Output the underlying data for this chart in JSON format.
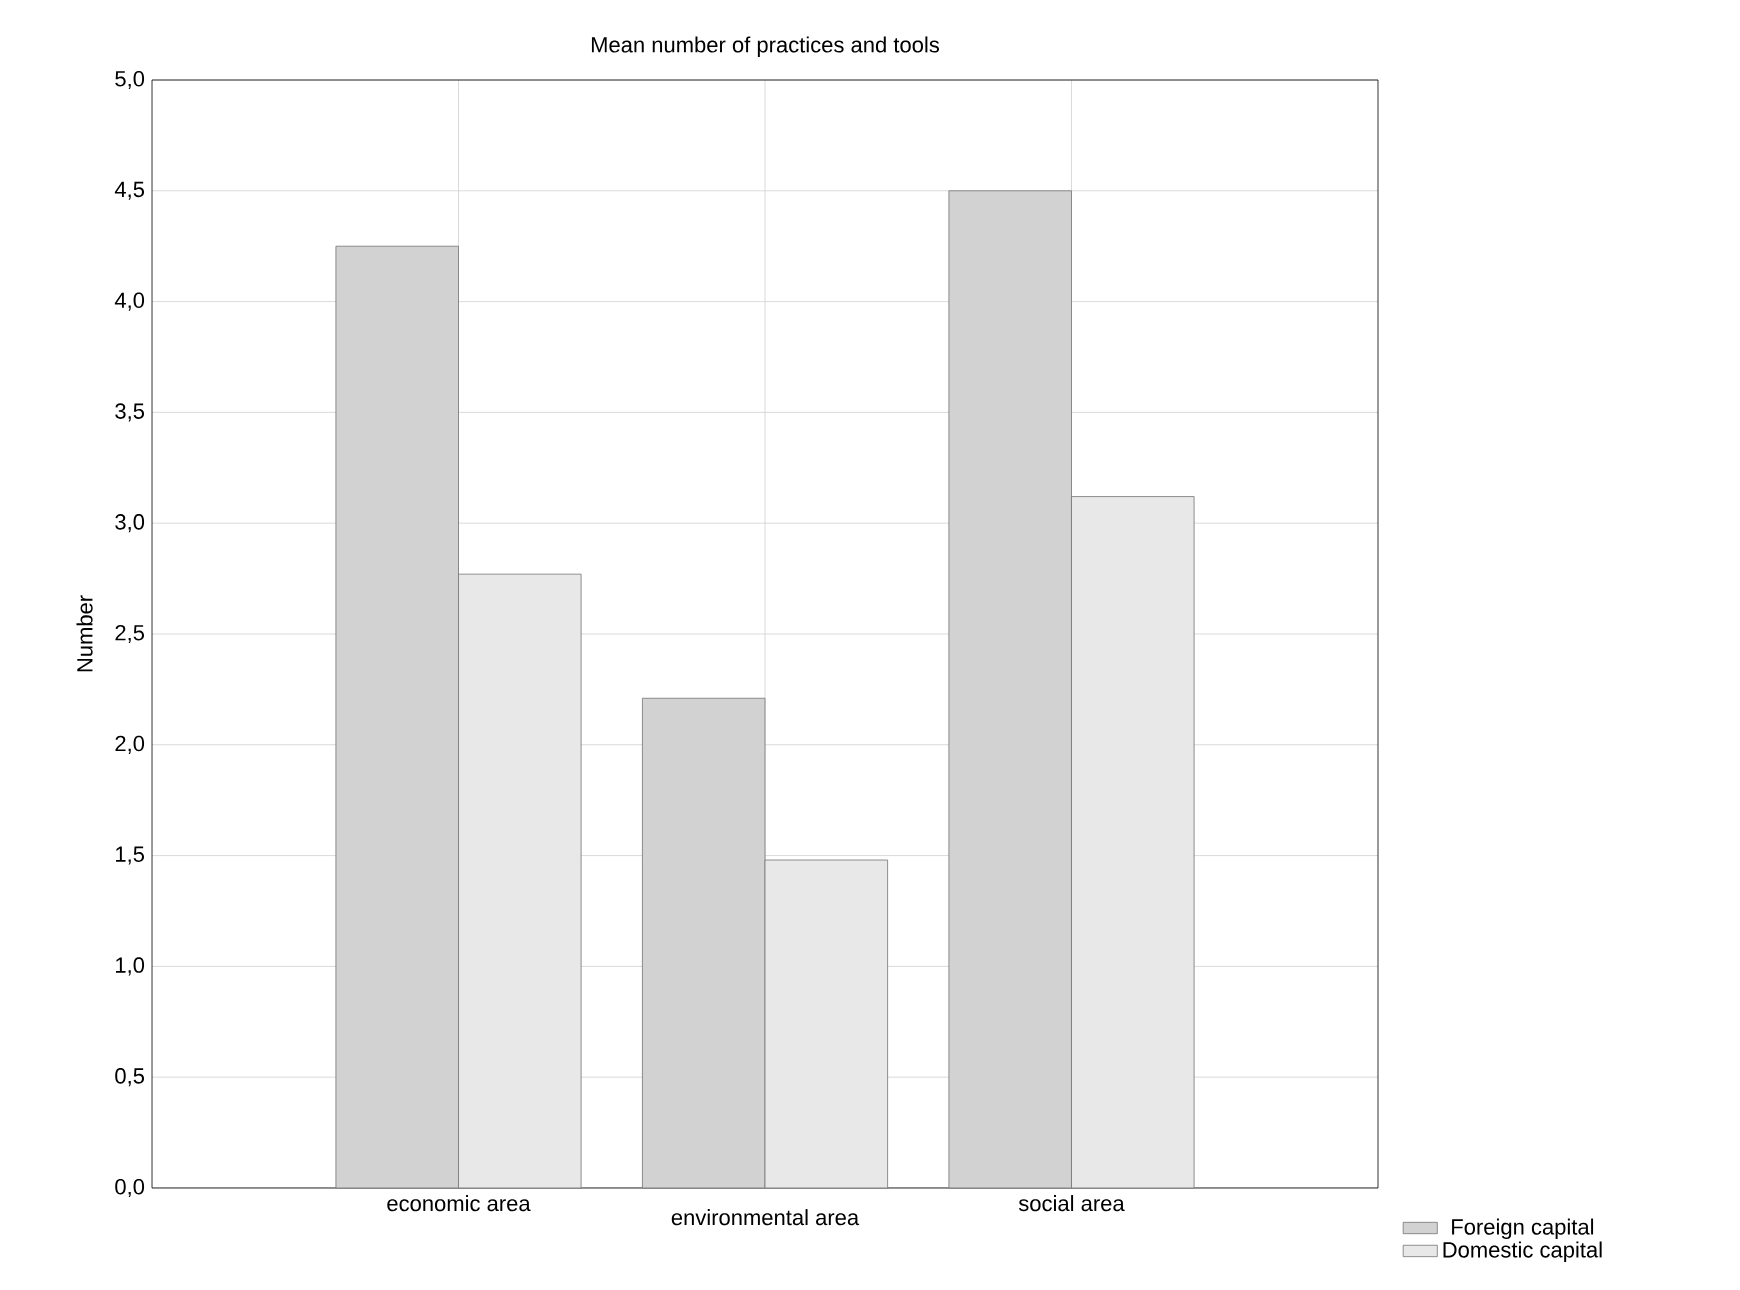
{
  "chart_data": {
    "type": "bar",
    "title": "Mean number of practices and tools",
    "ylabel": "Number",
    "categories": [
      "economic area",
      "environmental area",
      "social area"
    ],
    "series": [
      {
        "name": "Foreign capital",
        "color": "#d2d2d2",
        "values": [
          4.25,
          2.21,
          4.5
        ]
      },
      {
        "name": "Domestic capital",
        "color": "#e8e8e8",
        "values": [
          2.77,
          1.48,
          3.12
        ]
      }
    ],
    "ylim": [
      0,
      5
    ],
    "yticks": [
      {
        "value": 0,
        "label": "0,0"
      },
      {
        "value": 0.5,
        "label": "0,5"
      },
      {
        "value": 1,
        "label": "1,0"
      },
      {
        "value": 1.5,
        "label": "1,5"
      },
      {
        "value": 2,
        "label": "2,0"
      },
      {
        "value": 2.5,
        "label": "2,5"
      },
      {
        "value": 3,
        "label": "3,0"
      },
      {
        "value": 3.5,
        "label": "3,5"
      },
      {
        "value": 4,
        "label": "4,0"
      },
      {
        "value": 4.5,
        "label": "4,5"
      },
      {
        "value": 5,
        "label": "5,0"
      }
    ],
    "grid": true,
    "legend": "bottom right"
  }
}
